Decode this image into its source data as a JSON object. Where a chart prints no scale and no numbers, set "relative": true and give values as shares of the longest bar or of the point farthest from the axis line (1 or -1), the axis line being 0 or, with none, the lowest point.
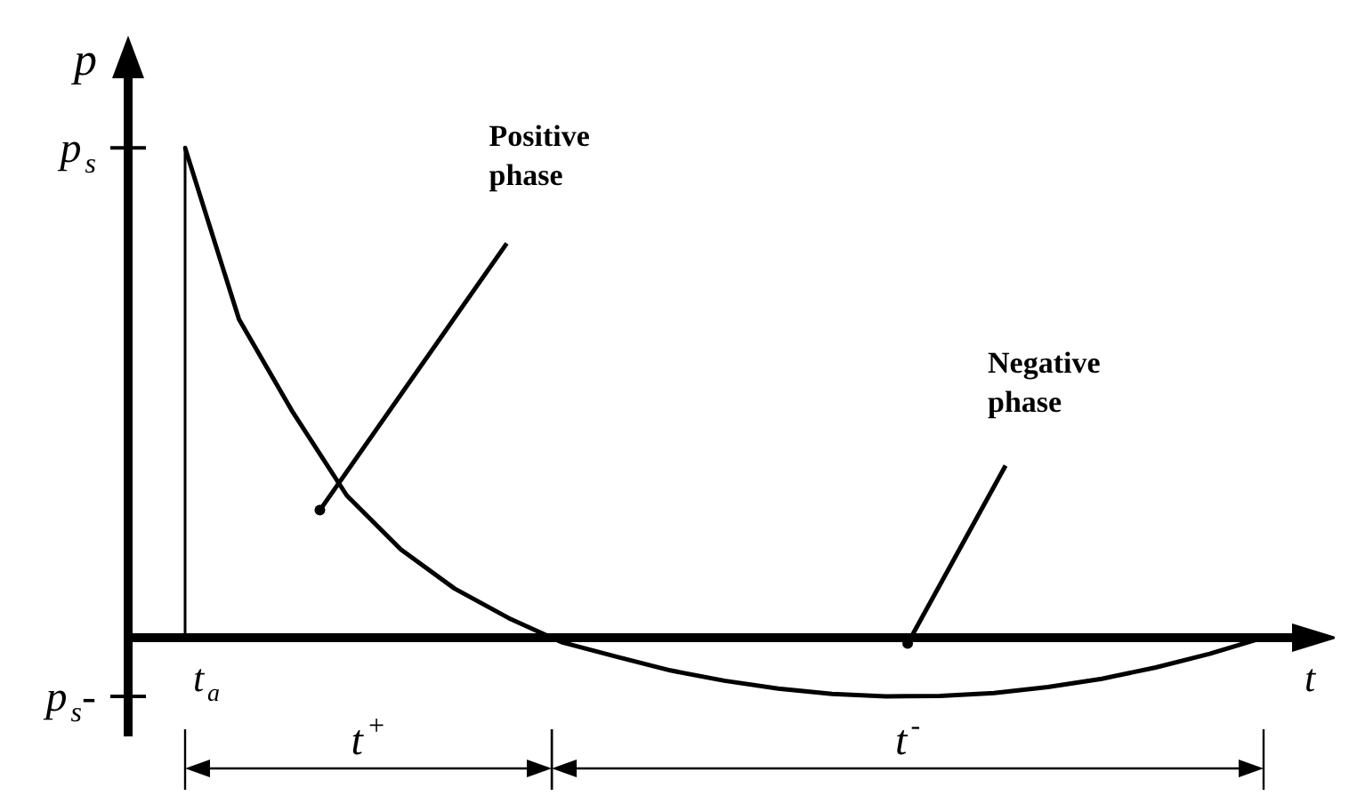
{
  "chart_data": {
    "type": "line",
    "xlabel": "t",
    "ylabel": "p",
    "relative": true,
    "categories": [
      null,
      null,
      null,
      null,
      null,
      null,
      null,
      null,
      null,
      null,
      null,
      null,
      null,
      null,
      null,
      null,
      null,
      null,
      null,
      null,
      null
    ],
    "series": [
      {
        "color": "#000000",
        "values": [
          1,
          0.65,
          0.46,
          0.29,
          0.18,
          0.1,
          0.04,
          -0.01,
          -0.039,
          -0.067,
          -0.088,
          -0.104,
          -0.115,
          -0.12,
          -0.119,
          -0.113,
          -0.101,
          -0.084,
          -0.061,
          -0.033,
          0
        ]
      }
    ],
    "annotations": [
      "p$_{s}$",
      "p$_{s}$-",
      "t$_{a}$",
      "Positive phase",
      "Negative phase",
      "t$^{+}$",
      "t$^{-}$"
    ],
    "legend": false,
    "marker": "none",
    "line_style": "solid"
  }
}
